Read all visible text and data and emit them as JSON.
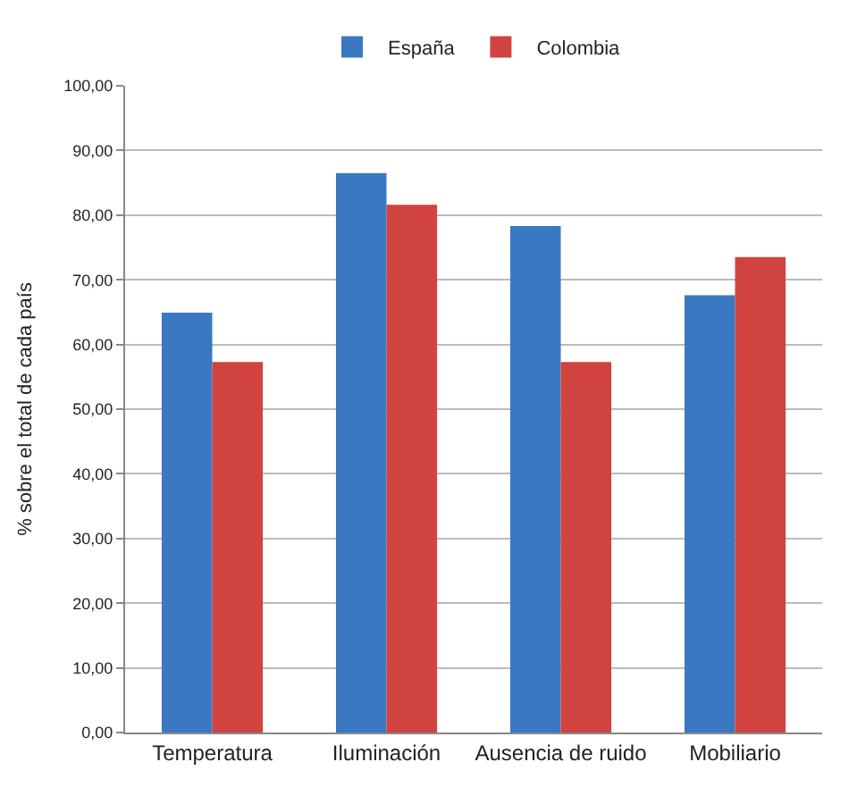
{
  "chart_data": {
    "type": "bar",
    "ylabel": "% sobre el total de cada país",
    "categories": [
      "Temperatura",
      "Iluminación",
      "Ausencia de ruido",
      "Mobiliario"
    ],
    "series": [
      {
        "name": "España",
        "color": "#3a78c2",
        "values": [
          64.9,
          86.5,
          78.3,
          67.6
        ]
      },
      {
        "name": "Colombia",
        "color": "#d0433f",
        "values": [
          57.3,
          81.6,
          57.3,
          73.5
        ]
      }
    ],
    "ylim": [
      0,
      100
    ],
    "yticks": [
      {
        "value": 0,
        "label": "0,00"
      },
      {
        "value": 10,
        "label": "10,00"
      },
      {
        "value": 20,
        "label": "20,00"
      },
      {
        "value": 30,
        "label": "30,00"
      },
      {
        "value": 40,
        "label": "40,00"
      },
      {
        "value": 50,
        "label": "50,00"
      },
      {
        "value": 60,
        "label": "60,00"
      },
      {
        "value": 70,
        "label": "70,00"
      },
      {
        "value": 80,
        "label": "80,00"
      },
      {
        "value": 90,
        "label": "90,00"
      },
      {
        "value": 100,
        "label": "100,00"
      }
    ],
    "grid": "y",
    "legend": "top"
  }
}
